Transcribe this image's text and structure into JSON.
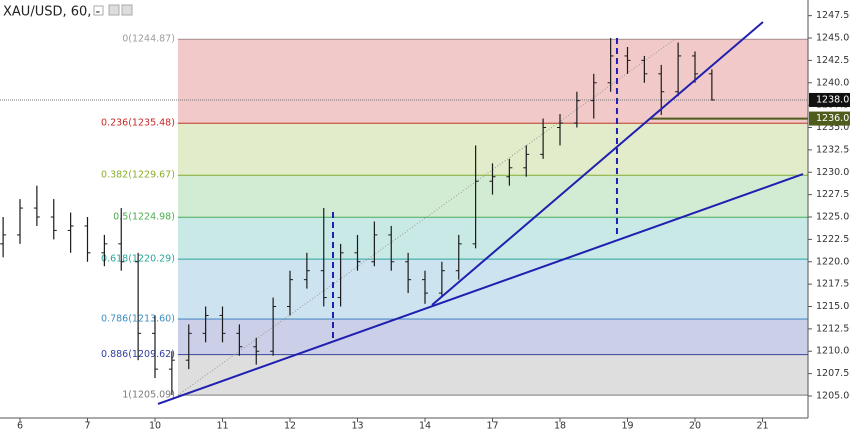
{
  "chart_data": {
    "type": "ohlc",
    "title": "XAU/USD, 60, -",
    "color": "#1a1a1a",
    "xlim": [
      -0.2963,
      11.6741
    ],
    "ylim": [
      1202.54,
      1249.25
    ],
    "xticks": [
      {
        "value": 0,
        "label": "6"
      },
      {
        "value": 1,
        "label": "7"
      },
      {
        "value": 2,
        "label": "10"
      },
      {
        "value": 3,
        "label": "11"
      },
      {
        "value": 4,
        "label": "12"
      },
      {
        "value": 5,
        "label": "13"
      },
      {
        "value": 6,
        "label": "14"
      },
      {
        "value": 7,
        "label": "17"
      },
      {
        "value": 8,
        "label": "18"
      },
      {
        "value": 9,
        "label": "19"
      },
      {
        "value": 10,
        "label": "20"
      },
      {
        "value": 11,
        "label": "21"
      }
    ],
    "yticks": [
      {
        "value": 1205,
        "label": "1205.00"
      },
      {
        "value": 1207.5,
        "label": "1207.50"
      },
      {
        "value": 1210,
        "label": "1210.00"
      },
      {
        "value": 1212.5,
        "label": "1212.50"
      },
      {
        "value": 1215,
        "label": "1215.00"
      },
      {
        "value": 1217.5,
        "label": "1217.50"
      },
      {
        "value": 1220,
        "label": "1220.00"
      },
      {
        "value": 1222.5,
        "label": "1222.50"
      },
      {
        "value": 1225,
        "label": "1225.00"
      },
      {
        "value": 1227.5,
        "label": "1227.50"
      },
      {
        "value": 1230,
        "label": "1230.00"
      },
      {
        "value": 1232.5,
        "label": "1232.50"
      },
      {
        "value": 1235,
        "label": "1235.00"
      },
      {
        "value": 1237.5,
        "label": "1237.50"
      },
      {
        "value": 1240,
        "label": "1240.00"
      },
      {
        "value": 1242.5,
        "label": "1242.50"
      },
      {
        "value": 1245,
        "label": "1245.00"
      },
      {
        "value": 1247.5,
        "label": "1247.50"
      }
    ],
    "x": [
      -0.25,
      0,
      0.25,
      0.5,
      0.75,
      1,
      1.25,
      1.5,
      1.75,
      2,
      2.25,
      2.5,
      2.75,
      3,
      3.25,
      3.5,
      3.75,
      4,
      4.25,
      4.5,
      4.75,
      5,
      5.25,
      5.5,
      5.75,
      6,
      6.25,
      6.5,
      6.75,
      7,
      7.25,
      7.5,
      7.75,
      8,
      8.25,
      8.5,
      8.75,
      9,
      9.25,
      9.5,
      9.75,
      10,
      10.25
    ],
    "open": [
      1222,
      1223,
      1226,
      1225,
      1223.5,
      1224,
      1221,
      1222,
      1220,
      1212,
      1208,
      1209,
      1212,
      1214,
      1212,
      1210.5,
      1210,
      1215,
      1218,
      1219,
      1216,
      1221,
      1220,
      1223,
      1220,
      1218,
      1216.5,
      1219,
      1222,
      1229,
      1229.5,
      1230.5,
      1232,
      1235,
      1235.5,
      1238,
      1240,
      1243,
      1242.5,
      1241,
      1239,
      1243,
      1241
    ],
    "high": [
      1225,
      1227,
      1228.5,
      1227,
      1225.5,
      1225,
      1223,
      1226,
      1221,
      1214,
      1210,
      1213,
      1215,
      1215,
      1213,
      1211.5,
      1216,
      1219,
      1221,
      1226,
      1222,
      1223,
      1224.5,
      1224,
      1221,
      1219,
      1220,
      1223,
      1233,
      1231,
      1231.5,
      1233,
      1236,
      1236.5,
      1239,
      1241,
      1245,
      1244,
      1243,
      1242,
      1244.5,
      1243.5,
      1241.5
    ],
    "low": [
      1220.5,
      1222,
      1224,
      1222.5,
      1221,
      1220,
      1219.5,
      1219,
      1209,
      1207,
      1205.1,
      1208,
      1211,
      1211,
      1209.5,
      1208.5,
      1209.5,
      1214,
      1217,
      1215,
      1215,
      1219,
      1219.5,
      1219,
      1216.5,
      1215.3,
      1216,
      1218,
      1221.5,
      1227.5,
      1228.5,
      1229.5,
      1231.5,
      1233,
      1235,
      1236,
      1239,
      1241,
      1240,
      1236.4,
      1238.5,
      1240,
      1238
    ],
    "close": [
      1223,
      1226,
      1225,
      1223.5,
      1224,
      1221,
      1222,
      1220,
      1212,
      1208,
      1209,
      1212,
      1214,
      1212,
      1210.5,
      1210,
      1215,
      1218,
      1219,
      1216,
      1221,
      1220,
      1223,
      1220,
      1218,
      1216.5,
      1219,
      1222,
      1229,
      1229.5,
      1230.5,
      1232,
      1235,
      1235.5,
      1238,
      1240,
      1243,
      1242.5,
      1241,
      1239,
      1243,
      1241,
      1238.08
    ],
    "fib": {
      "x_start": 2.34,
      "levels": [
        {
          "price": 1244.87,
          "label": "0(1244.87)",
          "color": "#9e9e9e"
        },
        {
          "price": 1235.48,
          "label": "0.236(1235.48)",
          "color": "#c62828"
        },
        {
          "price": 1229.67,
          "label": "0.382(1229.67)",
          "color": "#8bae2c"
        },
        {
          "price": 1224.98,
          "label": "0.5(1224.98)",
          "color": "#4caf50"
        },
        {
          "price": 1220.29,
          "label": "0.618(1220.29)",
          "color": "#26a69a"
        },
        {
          "price": 1213.6,
          "label": "0.786(1213.60)",
          "color": "#3d8fc4"
        },
        {
          "price": 1209.62,
          "label": "0.886(1209.62)",
          "color": "#303f9f"
        },
        {
          "price": 1205.09,
          "label": "1(1205.09)",
          "color": "#7a7a7a"
        }
      ]
    },
    "trendlines": [
      {
        "x": [
          2.044,
          11.6
        ],
        "y": [
          1204.11,
          1229.8
        ],
        "color": "#1f1fb0"
      },
      {
        "x": [
          6.104,
          11.007
        ],
        "y": [
          1215.17,
          1246.79
        ],
        "color": "#1f1fb0"
      }
    ],
    "dashed_lines": [
      {
        "x": [
          4.637,
          4.637
        ],
        "y": [
          1225.56,
          1211.26
        ],
        "color": "#1f1fb0"
      },
      {
        "x": [
          8.844,
          8.844
        ],
        "y": [
          1245,
          1222.65
        ],
        "color": "#1f1fb0"
      }
    ],
    "last_price": 1238.08,
    "level_line": {
      "value": 1236,
      "label": "1236.00",
      "x_start": 9.33,
      "color": "#4e5d1c"
    }
  }
}
